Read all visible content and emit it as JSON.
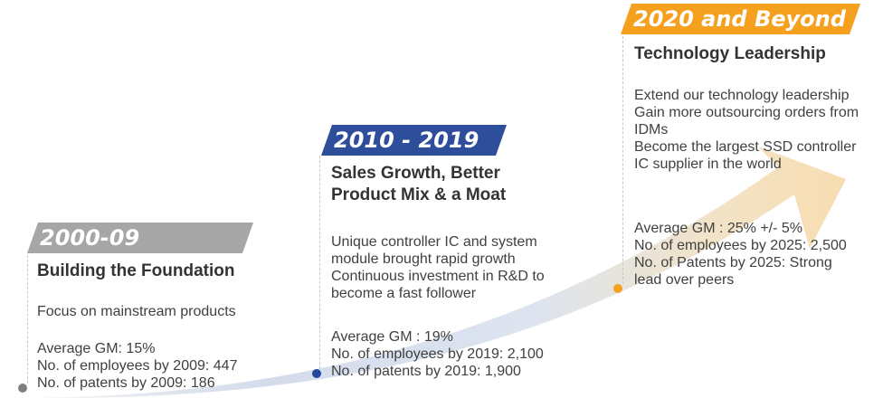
{
  "colors": {
    "period1": "#a6a6a6",
    "period2": "#2e4d9b",
    "period3": "#f5a01e",
    "dot1": "#7f7f7f",
    "dot2": "#24469c",
    "dot3": "#f5a01e"
  },
  "periods": [
    {
      "banner": "2000-09",
      "heading": [
        "Building the Foundation"
      ],
      "description": [
        "Focus on mainstream products"
      ],
      "stats": [
        "Average GM: 15%",
        "No. of employees by 2009: 447",
        "No. of patents by 2009: 186"
      ]
    },
    {
      "banner": "2010 - 2019",
      "heading": [
        "Sales Growth, Better",
        "Product Mix & a Moat"
      ],
      "description": [
        "Unique controller IC and system",
        "module brought rapid growth",
        "Continuous investment in R&D to",
        "become a fast follower"
      ],
      "stats": [
        "Average GM : 19%",
        "No. of employees by 2019: 2,100",
        "No. of patents by 2019: 1,900"
      ]
    },
    {
      "banner": "2020 and Beyond",
      "heading": [
        "Technology Leadership"
      ],
      "description": [
        "Extend our technology leadership",
        "Gain more outsourcing orders from",
        "IDMs",
        "Become the largest SSD controller",
        "IC supplier in  the world"
      ],
      "stats": [
        "Average GM : 25% +/- 5%",
        "No. of employees by 2025: 2,500",
        "No. of Patents by 2025: Strong",
        "lead over peers"
      ]
    }
  ]
}
